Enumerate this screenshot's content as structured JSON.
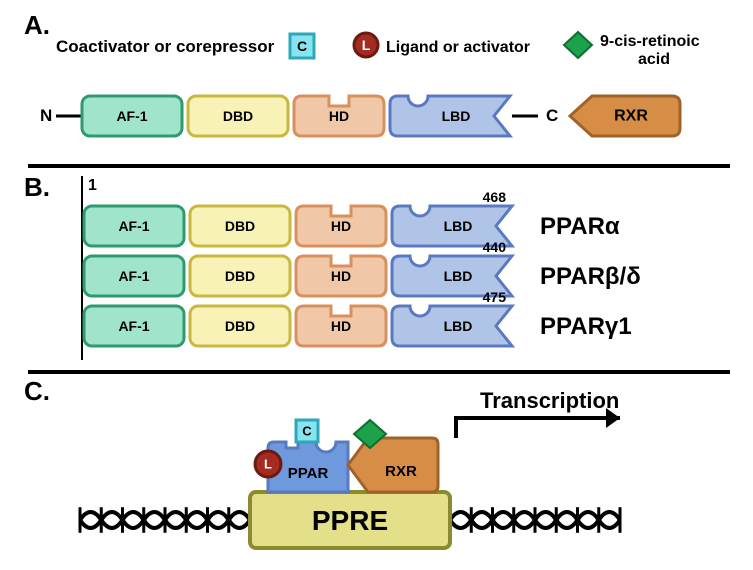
{
  "colors": {
    "af1_fill": "#a0e5cb",
    "af1_stroke": "#2e9a6d",
    "dbd_fill": "#f8f2b6",
    "dbd_stroke": "#c8b83f",
    "hd_fill": "#f0c8a8",
    "hd_stroke": "#d9905e",
    "lbd_fill": "#b0c4e8",
    "lbd_stroke": "#5a79c1",
    "rxr_fill": "#d68e47",
    "rxr_stroke": "#a1622a",
    "ppre_fill": "#e3e089",
    "ppre_stroke": "#8a8a2e",
    "ppar_box_fill": "#6e9add",
    "ligand_fill": "#a42b1f",
    "ligand_stroke": "#6b1a12",
    "coact_fill": "#86e5f0",
    "coact_stroke": "#2ea7b8",
    "retinoic_fill": "#1ca24a",
    "text": "#000000",
    "divider": "#000000",
    "dna": "#000000"
  },
  "fonts": {
    "panel_label": 26,
    "legend": 17,
    "legend_small": 16,
    "domain": 14,
    "superscript": 14,
    "big_label": 24,
    "rxr_label": 16,
    "c_label": 14,
    "l_label": 14,
    "ppre_label": 28,
    "trans_label": 22
  },
  "panelA": {
    "label": "A.",
    "legend": {
      "coact": "Coactivator or corepressor",
      "c_letter": "C",
      "ligand": "Ligand or activator",
      "l_letter": "L",
      "retinoic": "9-cis-retinoic",
      "retinoic2": "acid"
    },
    "n_terminal": "N",
    "c_terminal": "C",
    "domains": {
      "af1": "AF-1",
      "dbd": "DBD",
      "hd": "HD",
      "lbd": "LBD"
    },
    "rxr": "RXR"
  },
  "panelB": {
    "label": "B.",
    "start": "1",
    "rows": [
      {
        "end": "468",
        "name": "PPARα"
      },
      {
        "end": "440",
        "name": "PPARβ/δ"
      },
      {
        "end": "475",
        "name": "PPARγ1"
      }
    ],
    "domains": {
      "af1": "AF-1",
      "dbd": "DBD",
      "hd": "HD",
      "lbd": "LBD"
    }
  },
  "panelC": {
    "label": "C.",
    "ppar": "PPAR",
    "rxr": "RXR",
    "ppre": "PPRE",
    "transcription": "Transcription",
    "c_letter": "C",
    "l_letter": "L"
  }
}
